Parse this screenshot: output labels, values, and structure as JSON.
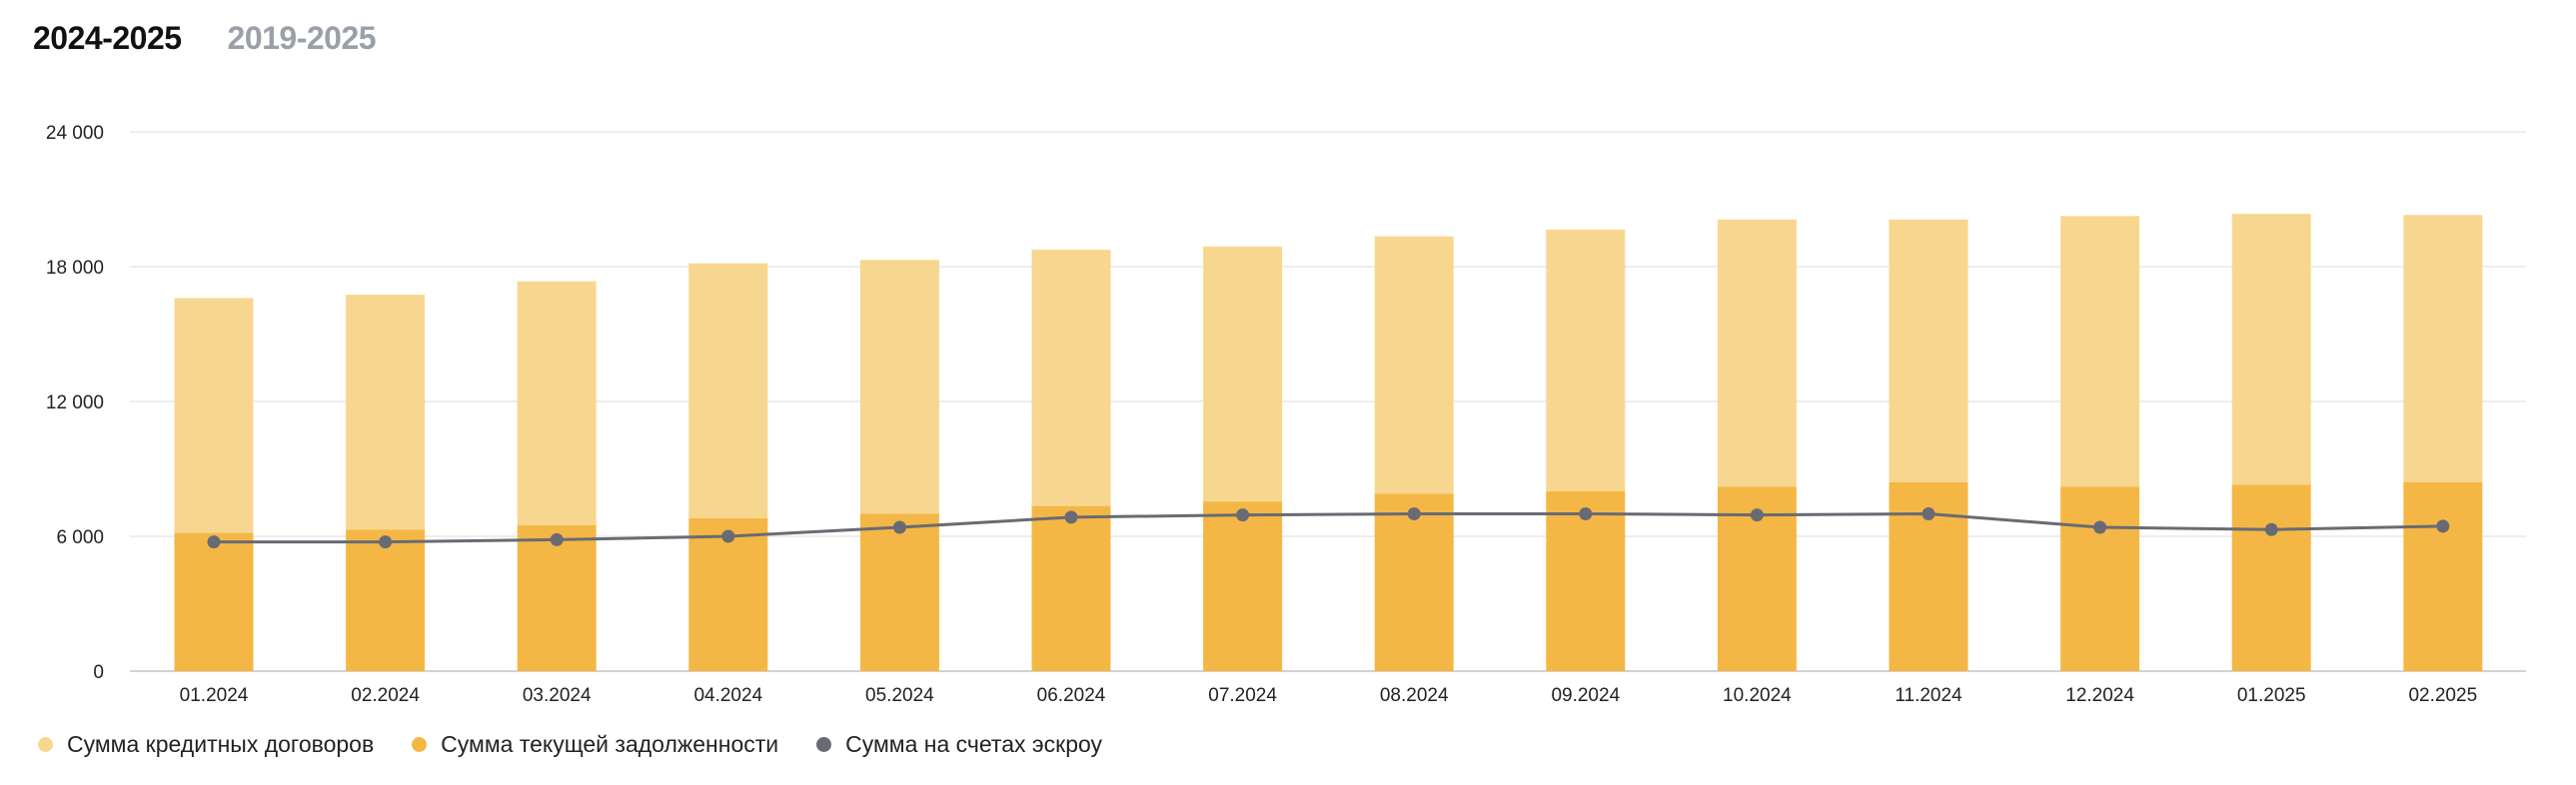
{
  "tabs": [
    {
      "label": "2024-2025",
      "active": true
    },
    {
      "label": "2019-2025",
      "active": false
    }
  ],
  "colors": {
    "credit_contracts": "#f7d78f",
    "current_debt": "#f4b745",
    "escrow_line": "#686b73",
    "grid": "#e7e7e7",
    "axis_text": "#222222"
  },
  "chart_data": {
    "type": "bar",
    "categories": [
      "01.2024",
      "02.2024",
      "03.2024",
      "04.2024",
      "05.2024",
      "06.2024",
      "07.2024",
      "08.2024",
      "09.2024",
      "10.2024",
      "11.2024",
      "12.2024",
      "01.2025",
      "02.2025"
    ],
    "ylim": [
      0,
      24000
    ],
    "yticks": [
      0,
      6000,
      12000,
      18000,
      24000
    ],
    "ytick_labels": [
      "0",
      "6 000",
      "12 000",
      "18 000",
      "24 000"
    ],
    "grid": true,
    "legend_position": "bottom-left",
    "series": [
      {
        "name": "Сумма кредитных договоров",
        "kind": "bar",
        "icon": "dot",
        "values": [
          16600,
          16750,
          17350,
          18150,
          18300,
          18750,
          18900,
          19350,
          19650,
          20100,
          20100,
          20250,
          20350,
          20300
        ]
      },
      {
        "name": "Сумма текущей задолженности",
        "kind": "bar",
        "icon": "dot",
        "values": [
          6150,
          6300,
          6500,
          6800,
          7000,
          7350,
          7550,
          7900,
          8000,
          8200,
          8400,
          8200,
          8300,
          8400
        ]
      },
      {
        "name": "Сумма на счетах эскроу",
        "kind": "line",
        "icon": "dot",
        "values": [
          5750,
          5750,
          5850,
          6000,
          6400,
          6850,
          6950,
          7000,
          7000,
          6950,
          7000,
          6400,
          6300,
          6450
        ]
      }
    ]
  }
}
